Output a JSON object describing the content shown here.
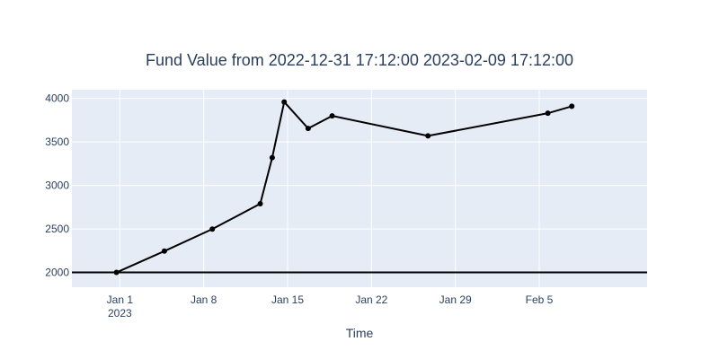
{
  "chart_data": {
    "type": "line",
    "title": "Fund Value from 2022-12-31 17:12:00 2023-02-09 17:12:00",
    "xlabel": "Time",
    "ylabel": "",
    "xlim": [
      "2022-12-28",
      "2023-02-14"
    ],
    "ylim": [
      1830,
      4100
    ],
    "x_ticks": [
      {
        "date": "2023-01-01",
        "label": "Jan 1",
        "sublabel": "2023"
      },
      {
        "date": "2023-01-08",
        "label": "Jan 8",
        "sublabel": ""
      },
      {
        "date": "2023-01-15",
        "label": "Jan 15",
        "sublabel": ""
      },
      {
        "date": "2023-01-22",
        "label": "Jan 22",
        "sublabel": ""
      },
      {
        "date": "2023-01-29",
        "label": "Jan 29",
        "sublabel": ""
      },
      {
        "date": "2023-02-05",
        "label": "Feb 5",
        "sublabel": ""
      }
    ],
    "y_ticks": [
      2000,
      2500,
      3000,
      3500,
      4000
    ],
    "reference_line": {
      "y": 2000,
      "color": "#000000"
    },
    "series": [
      {
        "color": "#000000",
        "points": [
          {
            "x": "2022-12-31 17:12",
            "y": 2000
          },
          {
            "x": "2023-01-04 17:12",
            "y": 2245
          },
          {
            "x": "2023-01-08 17:12",
            "y": 2498
          },
          {
            "x": "2023-01-12 17:12",
            "y": 2790
          },
          {
            "x": "2023-01-13 17:12",
            "y": 3320
          },
          {
            "x": "2023-01-14 17:12",
            "y": 3960
          },
          {
            "x": "2023-01-16 17:12",
            "y": 3655
          },
          {
            "x": "2023-01-18 17:12",
            "y": 3800
          },
          {
            "x": "2023-01-26 17:12",
            "y": 3570
          },
          {
            "x": "2023-02-05 17:12",
            "y": 3830
          },
          {
            "x": "2023-02-07 17:12",
            "y": 3910
          }
        ]
      }
    ],
    "grid": true,
    "plot_background": "#e5ecf6"
  }
}
